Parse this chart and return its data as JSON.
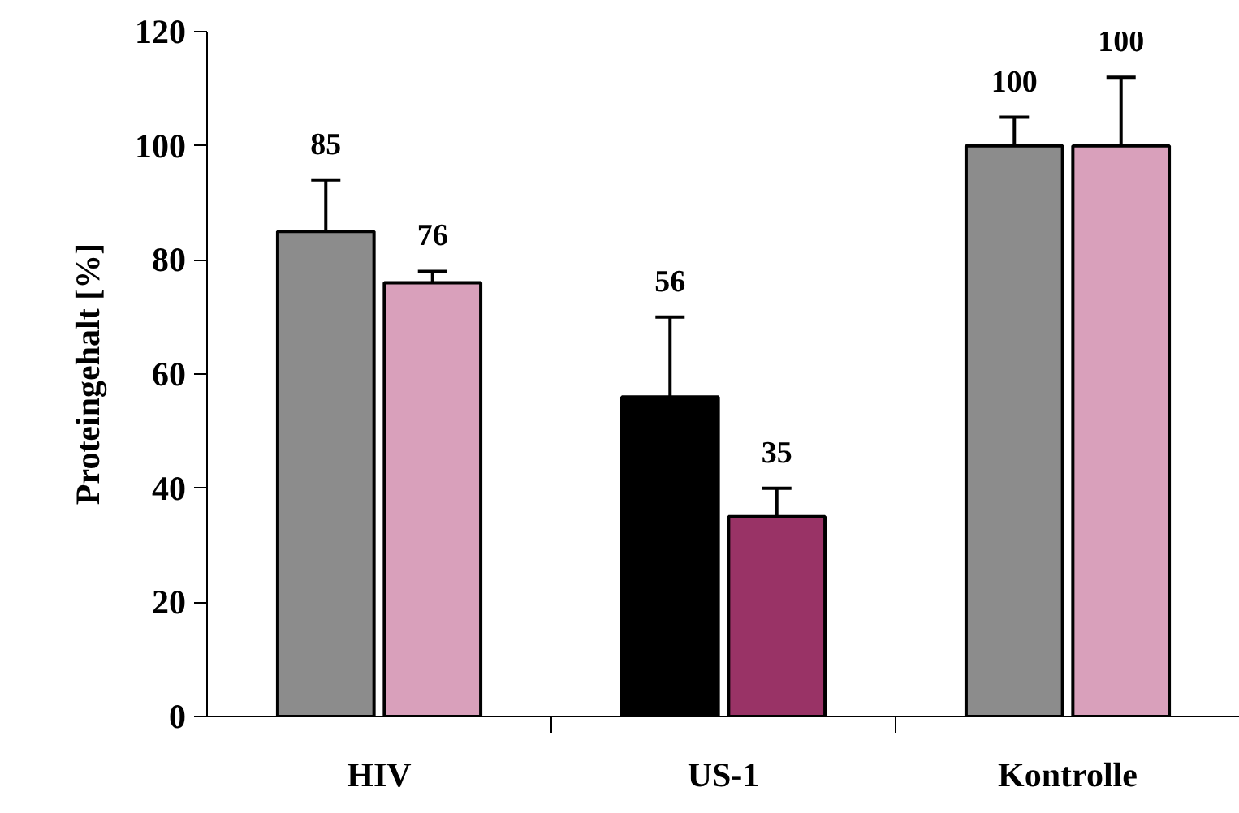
{
  "chart_data": {
    "type": "bar",
    "ylabel": "Proteingehalt [%]",
    "categories": [
      "HIV",
      "US-1",
      "Kontrolle"
    ],
    "series": [
      {
        "colors": [
          "#8c8c8c",
          "#000000",
          "#8c8c8c"
        ],
        "values": [
          85,
          56,
          100
        ],
        "errors": [
          9,
          14,
          5
        ]
      },
      {
        "colors": [
          "#d9a0bb",
          "#993366",
          "#d9a0bb"
        ],
        "values": [
          76,
          35,
          100
        ],
        "errors": [
          2,
          5,
          12
        ]
      }
    ],
    "ylim": [
      0,
      120
    ],
    "yticks": [
      0,
      20,
      40,
      60,
      80,
      100,
      120
    ],
    "data_labels": true,
    "grid": false
  }
}
